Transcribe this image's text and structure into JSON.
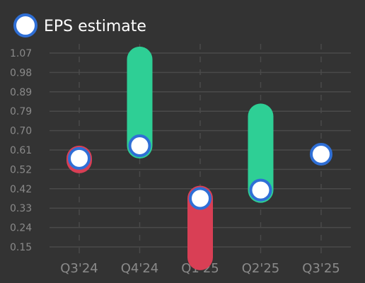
{
  "chart_data": {
    "type": "scatter",
    "legend": {
      "label": "EPS estimate",
      "placement": "top-left"
    },
    "categories": [
      "Q3'24",
      "Q4'24",
      "Q1'25",
      "Q2'25",
      "Q3'25"
    ],
    "yticks": [
      "1.07",
      "0.98",
      "0.89",
      "0.79",
      "0.70",
      "0.61",
      "0.52",
      "0.42",
      "0.33",
      "0.24",
      "0.15"
    ],
    "ylim": [
      0.15,
      1.07
    ],
    "series": [
      {
        "name": "EPS estimate",
        "values": [
          0.57,
          0.63,
          0.38,
          0.42,
          0.59
        ]
      }
    ],
    "actual": [
      0.56,
      1.04,
      0.1,
      0.77,
      null
    ],
    "grid": true,
    "colors": {
      "background": "#333333",
      "beat": "#2ecf95",
      "miss": "#d93f55",
      "estimate_fill": "#ffffff",
      "estimate_stroke": "#2f6fd6",
      "grid": "#4a4a4a",
      "text": "#8a8a8a"
    }
  }
}
